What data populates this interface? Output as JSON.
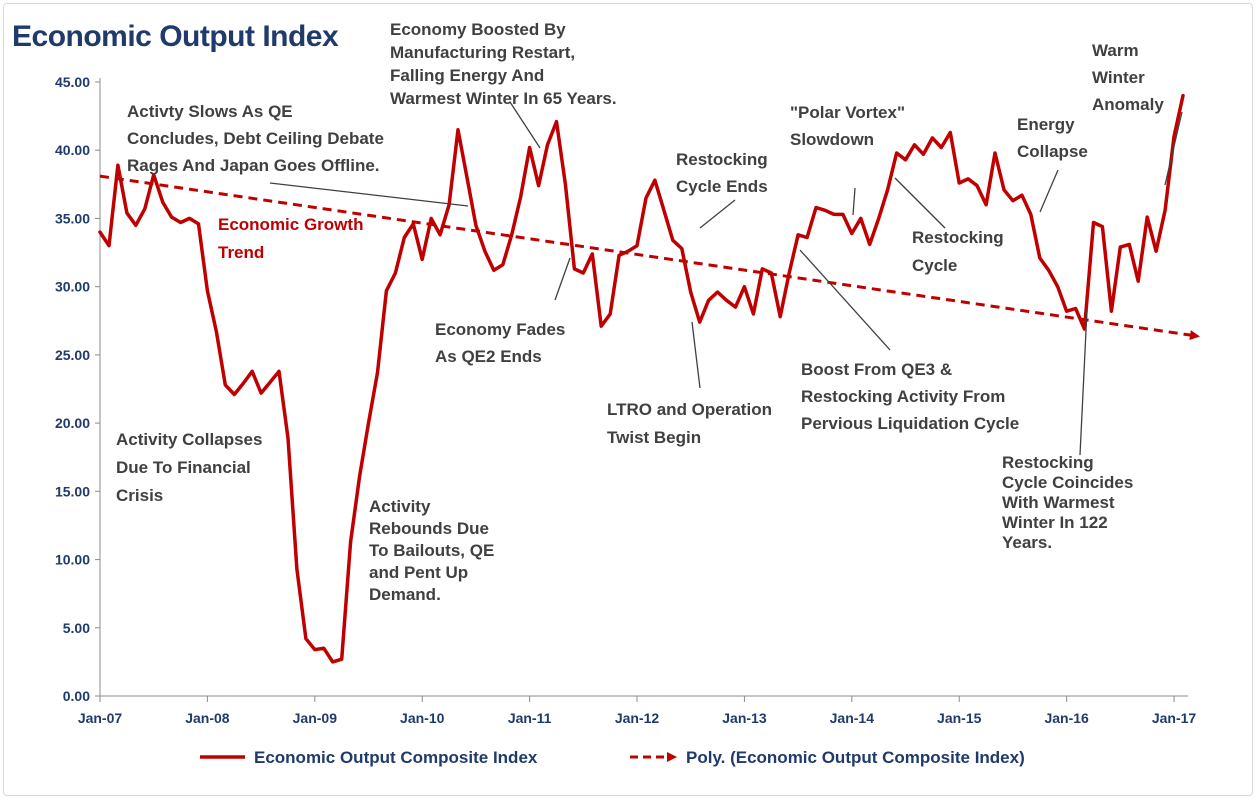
{
  "chart_data": {
    "type": "line",
    "title": "Economic Output Index",
    "xlabel": "",
    "ylabel": "",
    "ylim": [
      0,
      45
    ],
    "yticks": [
      "0.00",
      "5.00",
      "10.00",
      "15.00",
      "20.00",
      "25.00",
      "30.00",
      "35.00",
      "40.00",
      "45.00"
    ],
    "x_start": "Jan-07",
    "x_end": "Jan-17",
    "xticks": [
      "Jan-07",
      "Jan-08",
      "Jan-09",
      "Jan-10",
      "Jan-11",
      "Jan-12",
      "Jan-13",
      "Jan-14",
      "Jan-15",
      "Jan-16",
      "Jan-17"
    ],
    "grid": false,
    "legend_position": "bottom",
    "series": [
      {
        "name": "Economic Output Composite Index",
        "color": "#c00000",
        "style": "solid",
        "values": [
          34.0,
          33.0,
          38.9,
          35.4,
          34.5,
          35.7,
          38.2,
          36.2,
          35.1,
          34.7,
          35.0,
          34.6,
          29.7,
          26.7,
          22.8,
          22.1,
          22.9,
          23.8,
          22.2,
          23.0,
          23.8,
          18.9,
          9.3,
          4.2,
          3.4,
          3.5,
          2.5,
          2.7,
          11.3,
          16.1,
          20.0,
          23.7,
          29.7,
          31.0,
          33.6,
          34.6,
          32.0,
          35.0,
          33.8,
          36.0,
          41.5,
          38.0,
          34.5,
          32.6,
          31.2,
          31.6,
          33.8,
          36.6,
          40.2,
          37.4,
          40.4,
          42.1,
          37.5,
          31.3,
          31.0,
          32.4,
          27.1,
          28.0,
          32.3,
          32.6,
          33.0,
          36.5,
          37.8,
          35.6,
          33.4,
          32.8,
          29.6,
          27.4,
          29.0,
          29.6,
          29.0,
          28.5,
          30.0,
          28.0,
          31.3,
          31.0,
          27.8,
          31.0,
          33.8,
          33.6,
          35.8,
          35.6,
          35.3,
          35.3,
          33.9,
          35.0,
          33.1,
          35.0,
          37.1,
          39.8,
          39.3,
          40.4,
          39.7,
          40.9,
          40.2,
          41.3,
          37.6,
          37.9,
          37.4,
          36.0,
          39.8,
          37.1,
          36.3,
          36.7,
          35.3,
          32.1,
          31.2,
          30.0,
          28.2,
          28.4,
          26.9,
          34.7,
          34.4,
          28.2,
          32.9,
          33.1,
          30.4,
          35.1,
          32.6,
          35.6,
          41.0,
          44.0
        ]
      },
      {
        "name": "Poly. (Economic Output Composite Index)",
        "color": "#c00000",
        "style": "dashed",
        "start": 38.1,
        "end": 26.4
      }
    ],
    "legend": [
      "Economic Output Composite Index",
      "Poly. (Economic Output Composite Index)"
    ],
    "trend_label": [
      "Economic Growth",
      "Trend"
    ],
    "annotations": [
      {
        "id": "financial-crisis",
        "lines": [
          "Activity Collapses",
          "Due To Financial",
          "Crisis"
        ]
      },
      {
        "id": "qe-conclude",
        "lines": [
          "Activty Slows As QE",
          "Concludes, Debt Ceiling Debate",
          "Rages And Japan Goes Offline."
        ]
      },
      {
        "id": "rebound",
        "lines": [
          "Activity",
          "Rebounds Due",
          "To Bailouts, QE",
          "and Pent Up",
          "Demand."
        ]
      },
      {
        "id": "manufacturing",
        "lines": [
          "Economy Boosted By",
          "Manufacturing Restart,",
          "Falling Energy And",
          "Warmest Winter In 65 Years."
        ]
      },
      {
        "id": "qe2-ends",
        "lines": [
          "Economy Fades",
          "As QE2 Ends"
        ]
      },
      {
        "id": "restocking-ends",
        "lines": [
          "Restocking",
          "Cycle Ends"
        ]
      },
      {
        "id": "ltro",
        "lines": [
          "LTRO and Operation",
          "Twist Begin"
        ]
      },
      {
        "id": "polar-vortex",
        "lines": [
          "\"Polar Vortex\"",
          "Slowdown"
        ]
      },
      {
        "id": "restocking-cycle",
        "lines": [
          "Restocking",
          "Cycle"
        ]
      },
      {
        "id": "qe3",
        "lines": [
          "Boost From QE3 &",
          "Restocking Activity From",
          "Pervious Liquidation Cycle"
        ]
      },
      {
        "id": "energy-collapse",
        "lines": [
          "Energy",
          "Collapse"
        ]
      },
      {
        "id": "warm-winter",
        "lines": [
          "Warm",
          "Winter",
          "Anomaly"
        ]
      },
      {
        "id": "restocking-warmest",
        "lines": [
          "Restocking",
          "Cycle Coincides",
          "With Warmest",
          "Winter In 122",
          "Years."
        ]
      }
    ]
  }
}
